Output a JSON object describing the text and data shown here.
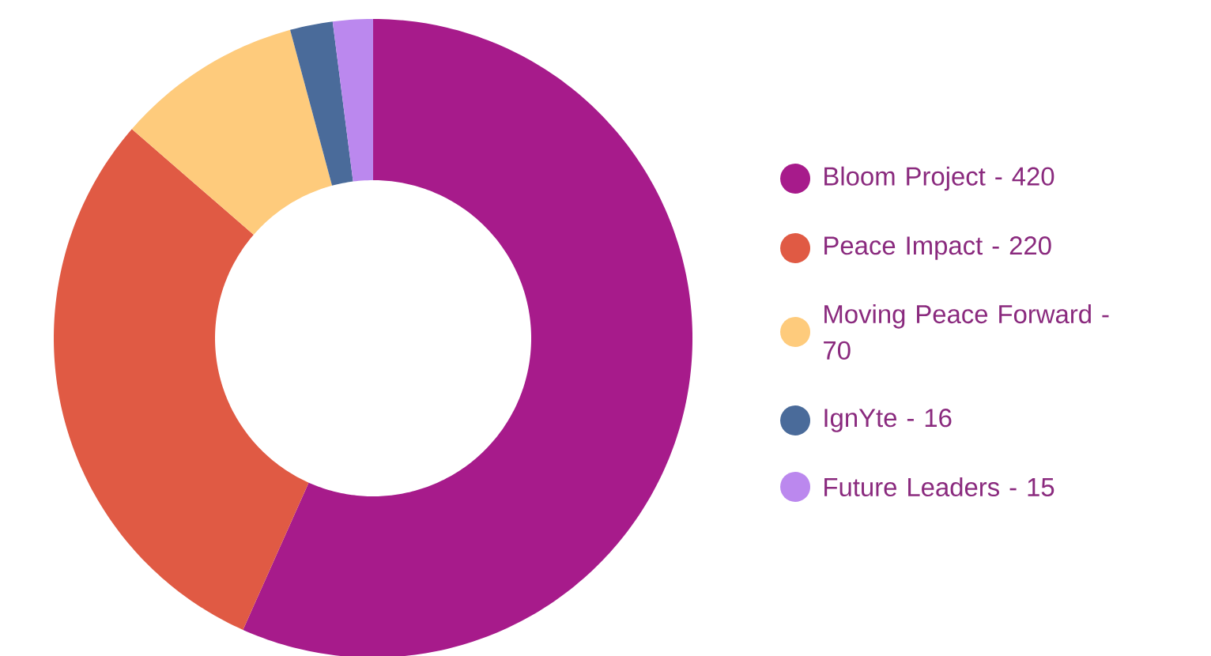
{
  "chart_data": {
    "type": "donut",
    "categories": [
      "Bloom Project -",
      "Peace Impact -",
      "Moving Peace Forward -",
      "IgnYte -",
      "Future Leaders -"
    ],
    "value_labels": [
      "420",
      "220",
      "70",
      "16",
      "15"
    ],
    "values": [
      420,
      220,
      70,
      16,
      15
    ],
    "colors": [
      "#a71b8b",
      "#e05a44",
      "#fecb7c",
      "#4a6b9a",
      "#bb88ee"
    ],
    "legend": "right"
  }
}
